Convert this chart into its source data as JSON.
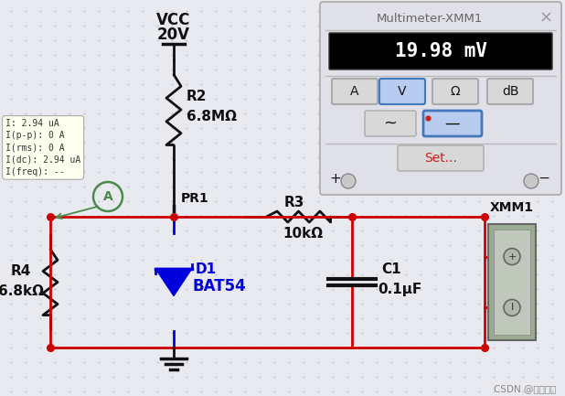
{
  "bg_color": "#e8eaf0",
  "dot_color": "#c5c8d8",
  "vcc_label": "VCC",
  "vcc_value": "20V",
  "r2_label": "R2",
  "r2_value": "6.8MΩ",
  "r3_label": "R3",
  "r3_value": "10kΩ",
  "r4_label": "R4",
  "r4_value": "6.8kΩ",
  "d1_label": "D1",
  "d1_value": "BAT54",
  "c1_label": "C1",
  "c1_value": "0.1μF",
  "pr1_label": "PR1",
  "xmm1_label": "XMM1",
  "meter_title": "Multimeter-XMM1",
  "meter_value": "19.98 mV",
  "ammeter_text": "I: 2.94 uA\nI(p-p): 0 A\nI(rms): 0 A\nI(dc): 2.94 uA\nI(freq): --",
  "wire_color": "#cc0000",
  "black_wire": "#111111",
  "diode_color": "#0000dd",
  "node_color": "#cc0000",
  "footer": "CSDN @逝雪无痕"
}
